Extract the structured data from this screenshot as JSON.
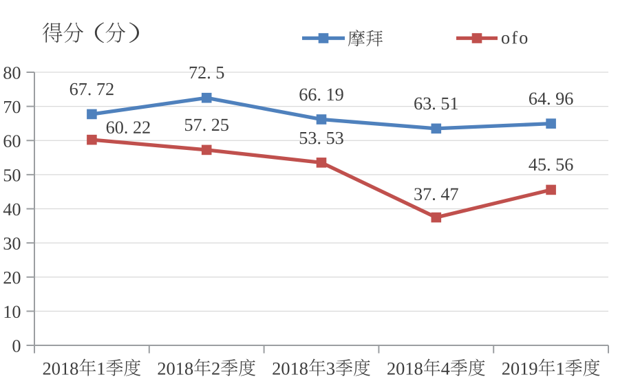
{
  "chart_data": {
    "type": "line",
    "title": "得分（分）",
    "categories": [
      "2018年1季度",
      "2018年2季度",
      "2018年3季度",
      "2018年4季度",
      "2019年1季度"
    ],
    "series": [
      {
        "name": "摩拜",
        "color": "#4F81BD",
        "values": [
          67.72,
          72.5,
          66.19,
          63.51,
          64.96
        ]
      },
      {
        "name": "ofo",
        "color": "#C0504D",
        "values": [
          60.22,
          57.25,
          53.53,
          37.47,
          45.56
        ]
      }
    ],
    "ylim": [
      0,
      80
    ],
    "yticks": [
      0,
      10,
      20,
      30,
      40,
      50,
      60,
      70,
      80
    ],
    "grid": true,
    "legend_position": "top",
    "marker": "square",
    "background": "#FFFFFF",
    "text_color": "#3D3D3D",
    "axis_color": "#9B9EA1",
    "gridline_color": "#D9D9D9"
  }
}
